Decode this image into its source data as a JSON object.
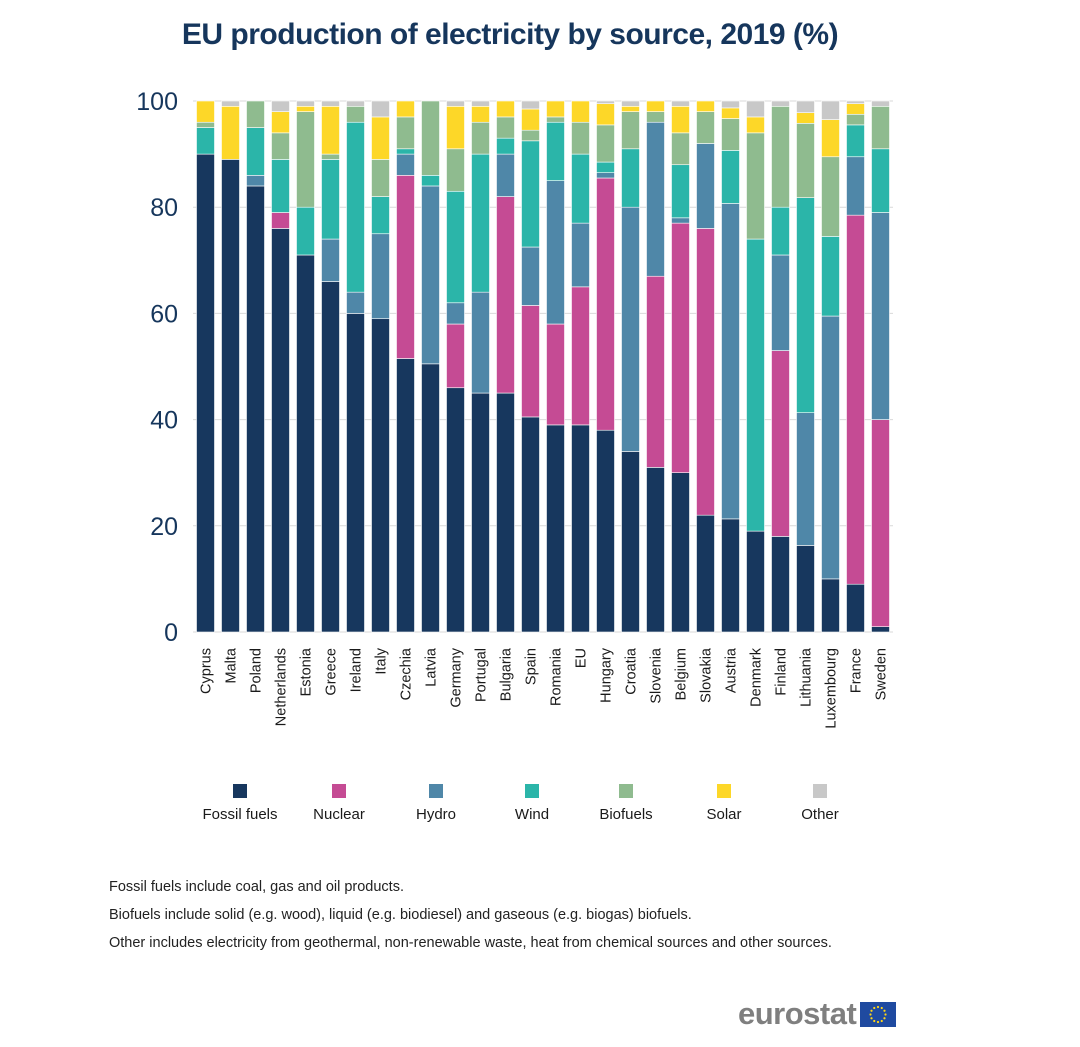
{
  "chart_data": {
    "type": "bar",
    "stacked": true,
    "title": "EU production of electricity by source, 2019 (%)",
    "xlabel": "",
    "ylabel": "",
    "ylim": [
      0,
      100
    ],
    "yticks": [
      0,
      20,
      40,
      60,
      80,
      100
    ],
    "grid": true,
    "legend_position": "bottom",
    "categories": [
      "Cyprus",
      "Malta",
      "Poland",
      "Netherlands",
      "Estonia",
      "Greece",
      "Ireland",
      "Italy",
      "Czechia",
      "Latvia",
      "Germany",
      "Portugal",
      "Bulgaria",
      "Spain",
      "Romania",
      "EU",
      "Hungary",
      "Croatia",
      "Slovenia",
      "Belgium",
      "Slovakia",
      "Austria",
      "Denmark",
      "Finland",
      "Lithuania",
      "Luxembourg",
      "France",
      "Sweden"
    ],
    "series": [
      {
        "name": "Fossil fuels",
        "color": "#17375e",
        "values": [
          90,
          89,
          84,
          76,
          71,
          66,
          60,
          59,
          51.5,
          50.5,
          46,
          45,
          45,
          40.5,
          39,
          39,
          38,
          34,
          31,
          30,
          22,
          21.3,
          19,
          18,
          16.3,
          10,
          9,
          1
        ]
      },
      {
        "name": "Nuclear",
        "color": "#c54b94",
        "values": [
          0,
          0,
          0,
          3,
          0,
          0,
          0,
          0,
          34.5,
          0,
          12,
          0,
          37,
          21,
          19,
          26,
          47.5,
          0,
          36,
          47,
          54,
          0,
          0,
          35,
          0,
          0,
          69.5,
          39
        ]
      },
      {
        "name": "Hydro",
        "color": "#4f87a8",
        "values": [
          0,
          0,
          2,
          0,
          0,
          8,
          4,
          16,
          4,
          33.5,
          4,
          19,
          8,
          11,
          27,
          12,
          1,
          46,
          29,
          1,
          16,
          59.4,
          0,
          18,
          25,
          49.5,
          11,
          39
        ]
      },
      {
        "name": "Wind",
        "color": "#2bb5a9",
        "values": [
          5,
          0,
          9,
          10,
          9,
          15,
          32,
          7,
          1,
          2,
          21,
          26,
          3,
          20,
          11,
          13,
          2,
          11,
          0,
          10,
          0,
          10,
          55,
          9,
          40.5,
          15,
          6,
          12
        ]
      },
      {
        "name": "Biofuels",
        "color": "#8fbb8f",
        "values": [
          1,
          0,
          5,
          5,
          18,
          1,
          3,
          7,
          6,
          14,
          8,
          6,
          4,
          2,
          1,
          6,
          7,
          7,
          2,
          6,
          6,
          6,
          20,
          19,
          14,
          15,
          2,
          8
        ]
      },
      {
        "name": "Solar",
        "color": "#fdd728",
        "values": [
          4,
          10,
          0,
          4,
          1,
          9,
          0,
          8,
          3,
          0,
          8,
          3,
          3,
          4,
          3,
          4,
          4,
          1,
          2,
          5,
          2,
          2,
          3,
          0,
          2,
          7,
          2,
          0
        ]
      },
      {
        "name": "Other",
        "color": "#c8c8c8",
        "values": [
          0,
          1,
          0,
          2,
          1,
          1,
          1,
          3,
          0,
          0,
          1,
          1,
          0,
          1.5,
          0,
          0,
          0.5,
          1,
          0,
          1,
          0,
          1.3,
          3,
          1,
          2.2,
          3.5,
          0.5,
          1
        ]
      }
    ]
  },
  "notes": [
    "Fossil fuels include coal, gas and oil products.",
    "Biofuels include solid (e.g. wood), liquid (e.g. biodiesel) and gaseous (e.g. biogas) biofuels.",
    "Other includes electricity from geothermal, non-renewable waste, heat from chemical sources and other sources."
  ],
  "logo": {
    "text": "eurostat",
    "flag_icon": "eu-flag-icon"
  }
}
